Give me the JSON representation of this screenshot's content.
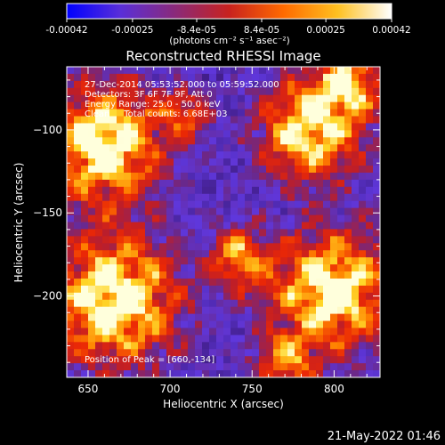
{
  "colorbar": {
    "tick_labels": [
      "-0.00042",
      "-0.00025",
      "-8.4e-05",
      "8.4e-05",
      "0.00025",
      "0.00042"
    ],
    "tick_values": [
      -0.00042,
      -0.00025,
      -8.4e-05,
      8.4e-05,
      0.00025,
      0.00042
    ],
    "range": [
      -0.00042,
      0.00042
    ],
    "unit_label": "(photons cm⁻² s⁻¹ asec⁻²)",
    "colors": [
      "#0000ff",
      "#5a2fd8",
      "#8a2a7a",
      "#c8221e",
      "#ff6a00",
      "#ffc020",
      "#ffffff"
    ]
  },
  "chart_data": {
    "type": "heatmap",
    "title": "Reconstructed RHESSI Image",
    "xlabel": "Heliocentric X (arcsec)",
    "ylabel": "Heliocentric Y (arcsec)",
    "xlim": [
      637,
      828
    ],
    "ylim": [
      -249,
      -62
    ],
    "x_ticks": [
      650,
      700,
      750,
      800
    ],
    "x_tick_labels": [
      "650",
      "700",
      "750",
      "800"
    ],
    "y_ticks": [
      -100,
      -150,
      -200
    ],
    "y_tick_labels": [
      "−100",
      "−150",
      "−200"
    ],
    "annotations": [
      "27-Dec-2014 05:53:52.000 to 05:59:52.000",
      "Detectors: 3F 6F 7F 9F, Att 0",
      "Energy Range: 25.0 - 50.0 keV",
      "Clean     Total counts: 6.68E+03"
    ],
    "peak_label": "Position of Peak = [660,-134]",
    "peak": [
      660,
      -134
    ]
  },
  "footer": {
    "timestamp": "21-May-2022 01:46"
  }
}
